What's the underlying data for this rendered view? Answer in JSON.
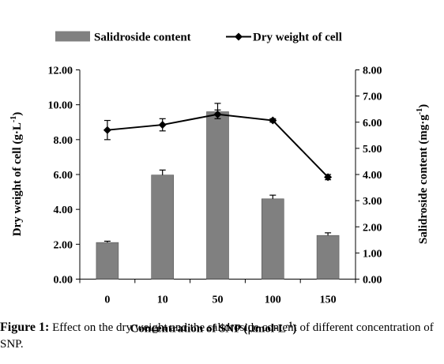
{
  "chart_data": {
    "type": "bar+line",
    "categories": [
      "0",
      "10",
      "50",
      "100",
      "150"
    ],
    "series": [
      {
        "name": "Salidroside content",
        "kind": "bar",
        "axis": "right",
        "values": [
          1.4,
          3.98,
          6.4,
          3.07,
          1.67
        ],
        "error": [
          0.05,
          0.19,
          0.32,
          0.14,
          0.1
        ],
        "color": "#808080"
      },
      {
        "name": "Dry weight of cell",
        "kind": "line",
        "axis": "left",
        "values": [
          8.55,
          8.85,
          9.45,
          9.1,
          5.85
        ],
        "error": [
          0.55,
          0.35,
          0.25,
          0.1,
          0.15
        ],
        "color": "#000000",
        "marker": "diamond"
      }
    ],
    "xlabel_main": "Concentration of SNP (",
    "xlabel_mu": "μ",
    "xlabel_rest": "mol·L",
    "xlabel_sup": "-1",
    "xlabel_close": ")",
    "ylabel_left_main": "Dry weight of cell (g·L",
    "ylabel_left_sup": "-1",
    "ylabel_left_close": ")",
    "ylabel_right_main": "Salidroside content (mg·g",
    "ylabel_right_sup": "-1",
    "ylabel_right_close": ")",
    "ylim_left": [
      0,
      12
    ],
    "ylim_right": [
      0,
      8
    ],
    "left_ticks": [
      "0.00",
      "2.00",
      "4.00",
      "6.00",
      "8.00",
      "10.00",
      "12.00"
    ],
    "right_ticks": [
      "0.00",
      "1.00",
      "2.00",
      "3.00",
      "4.00",
      "5.00",
      "6.00",
      "7.00",
      "8.00"
    ],
    "grid": false,
    "legend_position": "top"
  },
  "caption": {
    "label": "Figure 1:",
    "text": " Effect on the dry weight and the salidroside content of different concentration of SNP."
  }
}
